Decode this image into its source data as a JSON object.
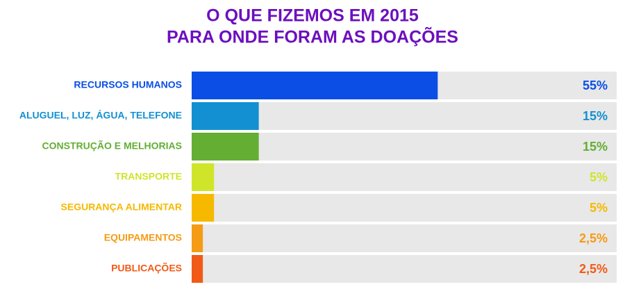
{
  "chart_data": {
    "type": "bar",
    "orientation": "horizontal",
    "title": "O QUE FIZEMOS EM 2015",
    "subtitle": "PARA ONDE FORAM AS DOAÇÕES",
    "categories": [
      "RECURSOS HUMANOS",
      "ALUGUEL, LUZ, ÁGUA, TELEFONE",
      "CONSTRUÇÃO E MELHORIAS",
      "TRANSPORTE",
      "SEGURANÇA ALIMENTAR",
      "EQUIPAMENTOS",
      "PUBLICAÇÕES"
    ],
    "values": [
      55,
      15,
      15,
      5,
      5,
      2.5,
      2.5
    ],
    "value_labels": [
      "55%",
      "15%",
      "15%",
      "5%",
      "5%",
      "2,5%",
      "2,5%"
    ],
    "colors": [
      "#0a4ee6",
      "#1390d2",
      "#63ae33",
      "#cfe52a",
      "#f6b900",
      "#f59b14",
      "#f15a16"
    ],
    "track_color": "#e8e8e8",
    "xlim": [
      0,
      95
    ]
  }
}
